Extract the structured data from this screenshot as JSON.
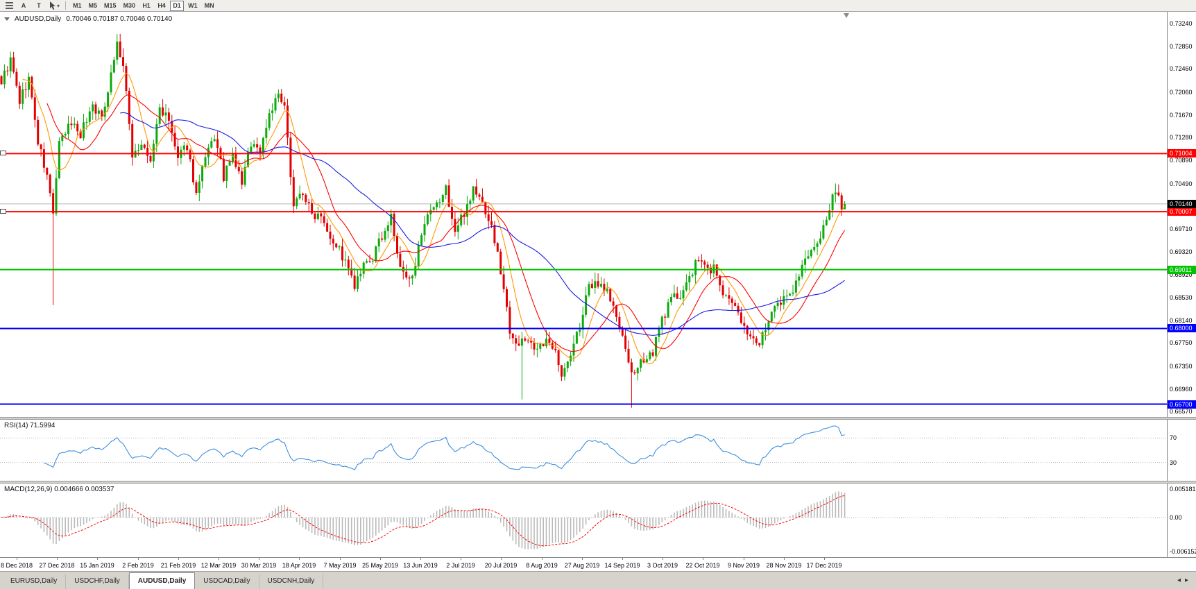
{
  "toolbar": {
    "buttons": [
      {
        "label": "A",
        "name": "annotations-button"
      },
      {
        "label": "T",
        "name": "text-button"
      }
    ],
    "timeframes": [
      "M1",
      "M5",
      "M15",
      "M30",
      "H1",
      "H4",
      "D1",
      "W1",
      "MN"
    ],
    "active_timeframe": "D1"
  },
  "main_chart": {
    "title": "AUDUSD,Daily",
    "ohlc_text": "0.70046 0.70187 0.70046 0.70140",
    "price_axis_labels": [
      "0.73240",
      "0.72850",
      "0.72460",
      "0.72060",
      "0.71670",
      "0.71280",
      "0.70890",
      "0.70490",
      "0.70100",
      "0.69710",
      "0.69320",
      "0.68920",
      "0.68530",
      "0.68140",
      "0.67750",
      "0.67350",
      "0.66960",
      "0.66570"
    ],
    "current_price": {
      "value": 0.7014,
      "label": "0.70140"
    },
    "levels": [
      {
        "value": 0.71004,
        "label": "0.71004",
        "color": "#ff0000",
        "type": "resistance",
        "handle": true
      },
      {
        "value": 0.70007,
        "label": "0.70007",
        "color": "#ff0000",
        "type": "resistance",
        "handle": true
      },
      {
        "value": 0.69011,
        "label": "0.69011",
        "color": "#00c400",
        "type": "support",
        "handle": false
      },
      {
        "value": 0.68,
        "label": "0.68000",
        "color": "#0000ff",
        "type": "support",
        "handle": false
      },
      {
        "value": 0.667,
        "label": "0.66700",
        "color": "#0000ff",
        "type": "support",
        "handle": false
      }
    ]
  },
  "rsi_panel": {
    "label": "RSI(14) 71.5994",
    "levels": [
      {
        "value": 70,
        "label": "70"
      },
      {
        "value": 30,
        "label": "30"
      }
    ]
  },
  "macd_panel": {
    "label": "MACD(12,26,9) 0.004666 0.003537",
    "axis_labels": [
      {
        "value": 0.005181,
        "label": "0.005181"
      },
      {
        "value": 0,
        "label": "0.00"
      },
      {
        "value": -0.006152,
        "label": "-0.006152"
      }
    ]
  },
  "date_axis": [
    "8 Dec 2018",
    "27 Dec 2018",
    "15 Jan 2019",
    "2 Feb 2019",
    "21 Feb 2019",
    "12 Mar 2019",
    "30 Mar 2019",
    "18 Apr 2019",
    "7 May 2019",
    "25 May 2019",
    "13 Jun 2019",
    "2 Jul 2019",
    "20 Jul 2019",
    "8 Aug 2019",
    "27 Aug 2019",
    "14 Sep 2019",
    "3 Oct 2019",
    "22 Oct 2019",
    "9 Nov 2019",
    "28 Nov 2019",
    "17 Dec 2019"
  ],
  "tab_bar": {
    "tabs": [
      {
        "label": "EURUSD,Daily",
        "active": false
      },
      {
        "label": "USDCHF,Daily",
        "active": false
      },
      {
        "label": "AUDUSD,Daily",
        "active": true
      },
      {
        "label": "USDCAD,Daily",
        "active": false
      },
      {
        "label": "USDCNH,Daily",
        "active": false
      }
    ]
  },
  "chart_data": {
    "type": "candlestick",
    "symbol": "AUDUSD",
    "timeframe": "Daily",
    "candle_count": 278,
    "price_range": [
      0.6648,
      0.7344
    ],
    "last_candle": {
      "open": 0.70046,
      "high": 0.70187,
      "low": 0.70046,
      "close": 0.7014
    },
    "anchors": [
      [
        0,
        0.7225
      ],
      [
        3,
        0.726
      ],
      [
        6,
        0.719
      ],
      [
        9,
        0.723
      ],
      [
        12,
        0.712
      ],
      [
        15,
        0.706
      ],
      [
        17,
        0.7
      ],
      [
        19,
        0.7115
      ],
      [
        23,
        0.7155
      ],
      [
        26,
        0.7135
      ],
      [
        30,
        0.7185
      ],
      [
        33,
        0.716
      ],
      [
        36,
        0.724
      ],
      [
        38,
        0.729
      ],
      [
        40,
        0.725
      ],
      [
        43,
        0.71
      ],
      [
        46,
        0.7115
      ],
      [
        49,
        0.7085
      ],
      [
        52,
        0.718
      ],
      [
        55,
        0.7155
      ],
      [
        58,
        0.709
      ],
      [
        61,
        0.7115
      ],
      [
        64,
        0.703
      ],
      [
        67,
        0.709
      ],
      [
        70,
        0.713
      ],
      [
        73,
        0.706
      ],
      [
        76,
        0.7095
      ],
      [
        79,
        0.705
      ],
      [
        82,
        0.712
      ],
      [
        85,
        0.7105
      ],
      [
        88,
        0.717
      ],
      [
        91,
        0.72
      ],
      [
        93,
        0.7175
      ],
      [
        96,
        0.7015
      ],
      [
        99,
        0.7035
      ],
      [
        102,
        0.6995
      ],
      [
        105,
        0.7
      ],
      [
        108,
        0.696
      ],
      [
        111,
        0.6935
      ],
      [
        114,
        0.69
      ],
      [
        116,
        0.687
      ],
      [
        119,
        0.6905
      ],
      [
        122,
        0.692
      ],
      [
        125,
        0.696
      ],
      [
        128,
        0.699
      ],
      [
        131,
        0.69
      ],
      [
        134,
        0.688
      ],
      [
        137,
        0.6935
      ],
      [
        140,
        0.699
      ],
      [
        143,
        0.701
      ],
      [
        146,
        0.704
      ],
      [
        149,
        0.6965
      ],
      [
        152,
        0.7
      ],
      [
        155,
        0.704
      ],
      [
        158,
        0.7015
      ],
      [
        161,
        0.6975
      ],
      [
        164,
        0.69
      ],
      [
        167,
        0.68
      ],
      [
        170,
        0.677
      ],
      [
        173,
        0.6785
      ],
      [
        176,
        0.676
      ],
      [
        179,
        0.6775
      ],
      [
        182,
        0.677
      ],
      [
        184,
        0.6715
      ],
      [
        187,
        0.6755
      ],
      [
        190,
        0.6805
      ],
      [
        193,
        0.687
      ],
      [
        196,
        0.688
      ],
      [
        199,
        0.6865
      ],
      [
        202,
        0.682
      ],
      [
        205,
        0.676
      ],
      [
        208,
        0.6715
      ],
      [
        211,
        0.675
      ],
      [
        214,
        0.676
      ],
      [
        217,
        0.6815
      ],
      [
        220,
        0.685
      ],
      [
        223,
        0.686
      ],
      [
        226,
        0.6885
      ],
      [
        229,
        0.692
      ],
      [
        232,
        0.69
      ],
      [
        234,
        0.6905
      ],
      [
        237,
        0.686
      ],
      [
        240,
        0.684
      ],
      [
        243,
        0.6815
      ],
      [
        246,
        0.679
      ],
      [
        248,
        0.677
      ],
      [
        251,
        0.68
      ],
      [
        254,
        0.683
      ],
      [
        257,
        0.685
      ],
      [
        260,
        0.687
      ],
      [
        263,
        0.6905
      ],
      [
        266,
        0.693
      ],
      [
        269,
        0.696
      ],
      [
        272,
        0.7005
      ],
      [
        274,
        0.704
      ],
      [
        277,
        0.7014
      ]
    ],
    "special_lows": {
      "17": 0.684,
      "171": 0.6678,
      "207": 0.6664
    },
    "special_highs": {
      "274": 0.7049
    },
    "colors": {
      "bull": "#0caa0c",
      "bear": "#e30000",
      "background": "#ffffff",
      "current_price_line": "#b4b4b4"
    },
    "moving_averages": [
      {
        "period": 8,
        "color": "#ff9800"
      },
      {
        "period": 16,
        "color": "#ff0000"
      },
      {
        "period": 40,
        "color": "#1a1ae6"
      }
    ],
    "indicators": {
      "rsi": {
        "period": 14,
        "current": 71.5994,
        "range": [
          0,
          100
        ],
        "levels": [
          70,
          30
        ],
        "color": "#3c8fe0"
      },
      "macd": {
        "fast": 12,
        "slow": 26,
        "signal": 9,
        "current": 0.004666,
        "signal_current": 0.003537,
        "range": [
          -0.0072,
          0.0062
        ],
        "histogram_color": "#b9b9b9",
        "signal_color": "#ff0000"
      }
    }
  }
}
